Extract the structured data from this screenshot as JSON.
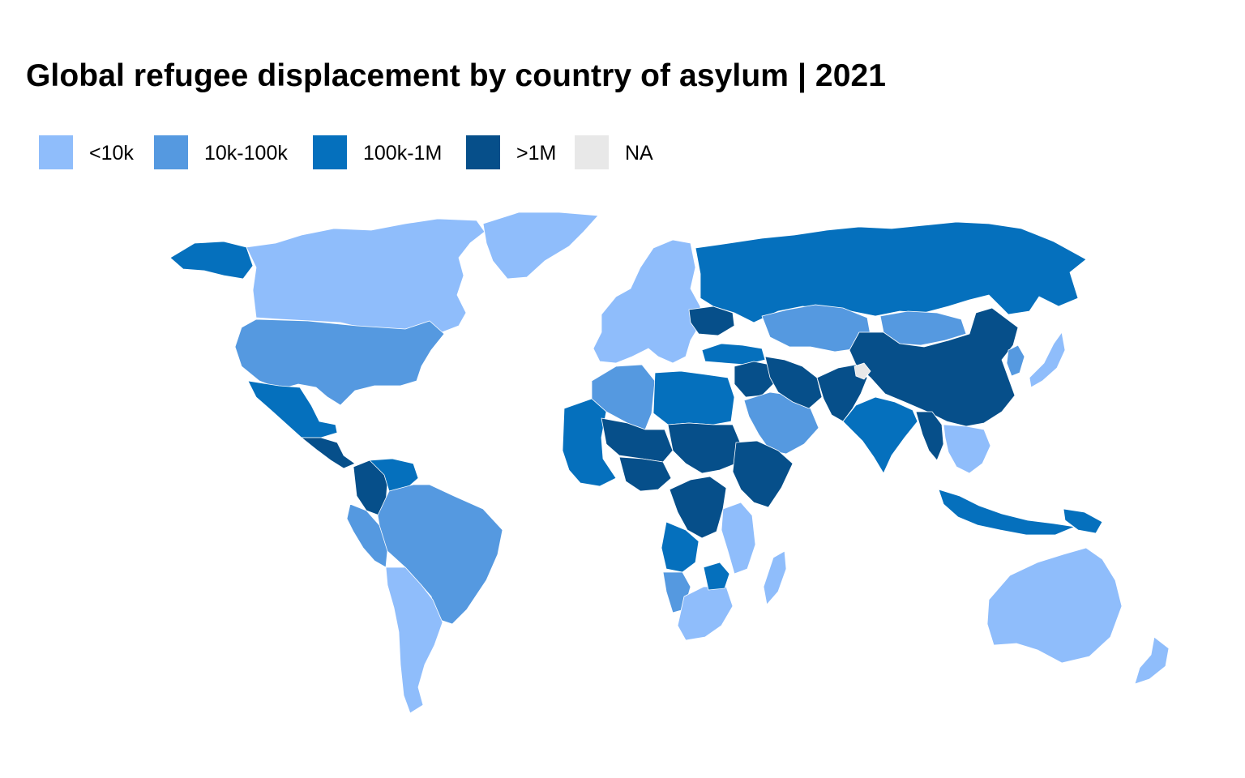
{
  "title": "Global refugee displacement by country of asylum | 2021",
  "legend": [
    {
      "label": "<10k",
      "color": "#8fbdfb"
    },
    {
      "label": "10k-100k",
      "color": "#5599e0"
    },
    {
      "label": "100k-1M",
      "color": "#0570bd"
    },
    {
      "label": ">1M",
      "color": "#064f8a"
    },
    {
      "label": "NA",
      "color": "#e8e8e8"
    }
  ],
  "map": {
    "projection": "equirectangular",
    "regions": [
      {
        "name": "Canada",
        "class": "<10k"
      },
      {
        "name": "Greenland",
        "class": "<10k"
      },
      {
        "name": "United States",
        "class": "10k-100k"
      },
      {
        "name": "Alaska",
        "class": "100k-1M"
      },
      {
        "name": "Mexico",
        "class": "100k-1M"
      },
      {
        "name": "Central America",
        "class": ">1M"
      },
      {
        "name": "Colombia",
        "class": ">1M"
      },
      {
        "name": "Venezuela",
        "class": "100k-1M"
      },
      {
        "name": "Brazil",
        "class": "10k-100k"
      },
      {
        "name": "Peru",
        "class": "10k-100k"
      },
      {
        "name": "Southern Cone",
        "class": "<10k"
      },
      {
        "name": "Western Europe",
        "class": "<10k"
      },
      {
        "name": "Ukraine",
        "class": ">1M"
      },
      {
        "name": "Russia",
        "class": "100k-1M"
      },
      {
        "name": "Turkey",
        "class": "100k-1M"
      },
      {
        "name": "Kazakhstan",
        "class": "10k-100k"
      },
      {
        "name": "Mongolia",
        "class": "10k-100k"
      },
      {
        "name": "China",
        "class": ">1M"
      },
      {
        "name": "Japan",
        "class": "<10k"
      },
      {
        "name": "Korea",
        "class": "10k-100k"
      },
      {
        "name": "Middle East",
        "class": ">1M"
      },
      {
        "name": "Arabian Peninsula",
        "class": "10k-100k"
      },
      {
        "name": "Iran",
        "class": ">1M"
      },
      {
        "name": "Afghanistan / Pakistan",
        "class": ">1M"
      },
      {
        "name": "India",
        "class": "100k-1M"
      },
      {
        "name": "Myanmar",
        "class": ">1M"
      },
      {
        "name": "Southeast Asia",
        "class": "<10k"
      },
      {
        "name": "Indonesia",
        "class": "100k-1M"
      },
      {
        "name": "Papua New Guinea",
        "class": "100k-1M"
      },
      {
        "name": "Australia",
        "class": "<10k"
      },
      {
        "name": "New Zealand",
        "class": "<10k"
      },
      {
        "name": "North Africa",
        "class": "10k-100k"
      },
      {
        "name": "Libya / Egypt",
        "class": "100k-1M"
      },
      {
        "name": "Sudan / Chad",
        "class": ">1M"
      },
      {
        "name": "West Africa",
        "class": "100k-1M"
      },
      {
        "name": "Mali / Niger",
        "class": ">1M"
      },
      {
        "name": "Nigeria",
        "class": ">1M"
      },
      {
        "name": "Horn of Africa",
        "class": ">1M"
      },
      {
        "name": "DR Congo",
        "class": ">1M"
      },
      {
        "name": "Angola",
        "class": "100k-1M"
      },
      {
        "name": "Namibia",
        "class": "10k-100k"
      },
      {
        "name": "Southern Africa",
        "class": "<10k"
      },
      {
        "name": "East Africa",
        "class": "<10k"
      },
      {
        "name": "Zimbabwe",
        "class": "100k-1M"
      },
      {
        "name": "Madagascar",
        "class": "<10k"
      },
      {
        "name": "Kashmir",
        "class": "NA"
      }
    ]
  }
}
